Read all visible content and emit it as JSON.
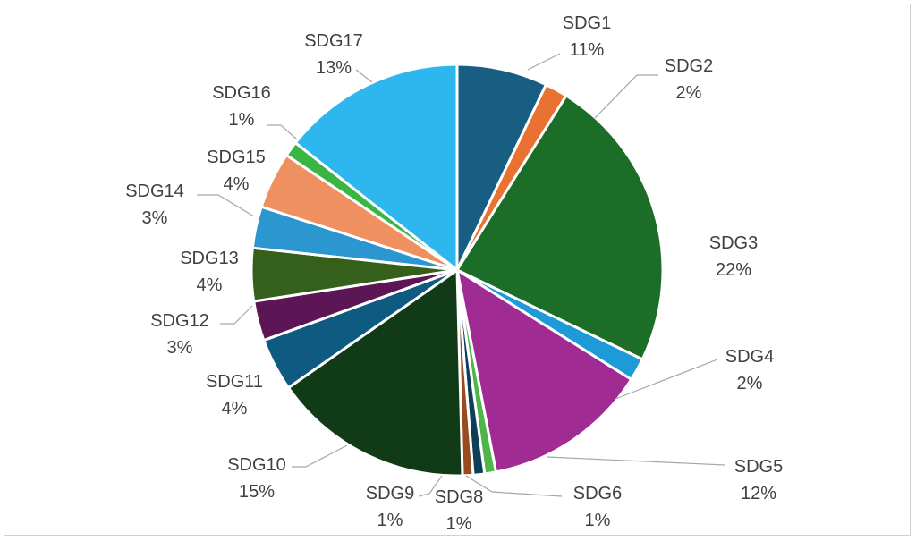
{
  "chart_data": {
    "type": "pie",
    "title": "",
    "legend": "none",
    "slices": [
      {
        "label": "SDG1",
        "value": 11,
        "display": "11%",
        "color": "#175e82"
      },
      {
        "label": "SDG2",
        "value": 2,
        "display": "2%",
        "color": "#e97132"
      },
      {
        "label": "SDG3",
        "value": 22,
        "display": "22%",
        "color": "#1b6d27"
      },
      {
        "label": "SDG4",
        "value": 2,
        "display": "2%",
        "color": "#1e9bd7"
      },
      {
        "label": "SDG5",
        "value": 12,
        "display": "12%",
        "color": "#a02b93"
      },
      {
        "label": "SDG6",
        "value": 1,
        "display": "1%",
        "color": "#4eb548"
      },
      {
        "label": "SDG8",
        "value": 1,
        "display": "1%",
        "color": "#0f3e58"
      },
      {
        "label": "SDG9",
        "value": 1,
        "display": "1%",
        "color": "#9a4a1f"
      },
      {
        "label": "SDG10",
        "value": 15,
        "display": "15%",
        "color": "#113a17"
      },
      {
        "label": "SDG11",
        "value": 4,
        "display": "4%",
        "color": "#0e5a80"
      },
      {
        "label": "SDG12",
        "value": 3,
        "display": "3%",
        "color": "#5c1655"
      },
      {
        "label": "SDG13",
        "value": 4,
        "display": "4%",
        "color": "#34601c"
      },
      {
        "label": "SDG14",
        "value": 3,
        "display": "3%",
        "color": "#2b96cf"
      },
      {
        "label": "SDG15",
        "value": 4,
        "display": "4%",
        "color": "#ee9060"
      },
      {
        "label": "SDG16",
        "value": 1,
        "display": "1%",
        "color": "#3ab544"
      },
      {
        "label": "SDG17",
        "value": 13,
        "display": "13%",
        "color": "#2eb6ef"
      }
    ]
  }
}
